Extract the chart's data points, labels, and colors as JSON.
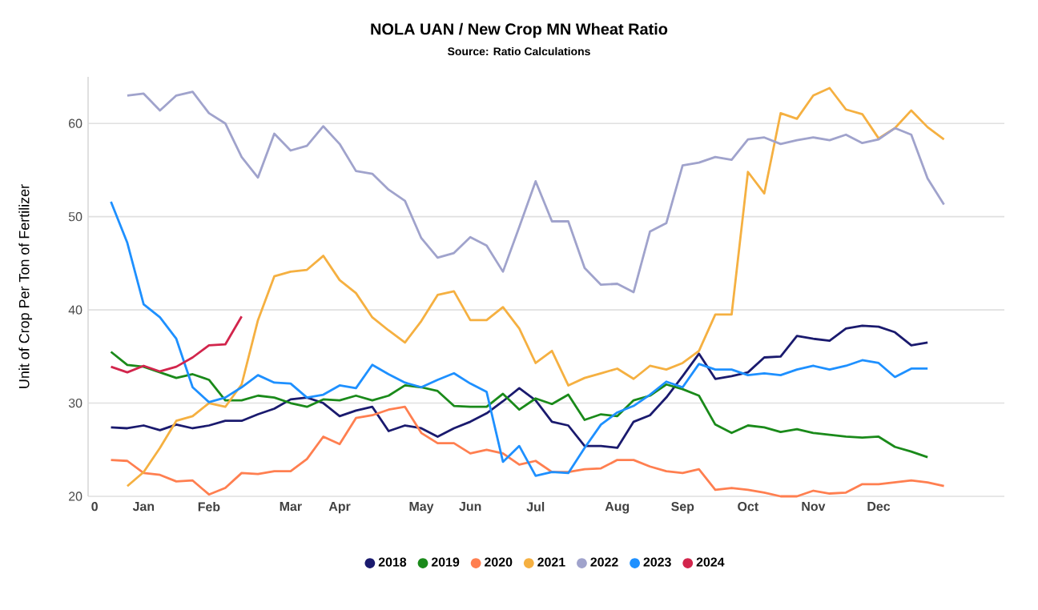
{
  "chart_data": {
    "type": "line",
    "title": "NOLA UAN / New Crop MN Wheat Ratio",
    "subtitle": "Source: Ratio Calculations",
    "ylabel": "Unit of Crop Per Ton of Fertilizer",
    "categories": [
      "0",
      null,
      null,
      "Jan",
      null,
      null,
      null,
      "Feb",
      null,
      null,
      null,
      null,
      "Mar",
      null,
      null,
      "Apr",
      null,
      null,
      null,
      null,
      "May",
      null,
      null,
      "Jun",
      null,
      null,
      null,
      "Jul",
      null,
      null,
      null,
      null,
      "Aug",
      null,
      null,
      null,
      "Sep",
      null,
      null,
      null,
      "Oct",
      null,
      null,
      null,
      "Nov",
      null,
      null,
      null,
      "Dec",
      null,
      null,
      null,
      null
    ],
    "series": [
      {
        "name": "2018",
        "color": "#1a1a6e",
        "values": [
          null,
          27.4,
          27.3,
          27.6,
          27.1,
          27.7,
          27.3,
          27.6,
          28.1,
          28.1,
          28.8,
          29.4,
          30.4,
          30.6,
          30.0,
          28.6,
          29.2,
          29.6,
          27.0,
          27.6,
          27.3,
          26.4,
          27.3,
          28.0,
          28.9,
          30.2,
          31.6,
          30.3,
          28.0,
          27.6,
          25.4,
          25.4,
          25.2,
          28.0,
          28.7,
          30.6,
          32.9,
          35.3,
          32.6,
          32.9,
          33.3,
          34.9,
          35.0,
          37.2,
          36.9,
          36.7,
          38.0,
          38.3,
          38.2,
          37.6,
          36.2,
          36.5,
          null
        ]
      },
      {
        "name": "2019",
        "color": "#1a8a1a",
        "values": [
          null,
          35.5,
          34.1,
          33.9,
          33.3,
          32.7,
          33.1,
          32.5,
          30.3,
          30.3,
          30.8,
          30.6,
          30.0,
          29.6,
          30.4,
          30.3,
          30.8,
          30.3,
          30.8,
          31.9,
          31.7,
          31.3,
          29.7,
          29.6,
          29.6,
          31.0,
          29.3,
          30.5,
          29.9,
          30.9,
          28.2,
          28.8,
          28.6,
          30.3,
          30.8,
          32.0,
          31.5,
          30.8,
          27.7,
          26.8,
          27.6,
          27.4,
          26.9,
          27.2,
          26.8,
          26.6,
          26.4,
          26.3,
          26.4,
          25.3,
          24.8,
          24.2,
          null
        ]
      },
      {
        "name": "2020",
        "color": "#ff7f50",
        "values": [
          null,
          23.9,
          23.8,
          22.5,
          22.3,
          21.6,
          21.7,
          20.2,
          20.9,
          22.5,
          22.4,
          22.7,
          22.7,
          24.0,
          26.4,
          25.6,
          28.4,
          28.7,
          29.3,
          29.6,
          26.8,
          25.7,
          25.7,
          24.6,
          25.0,
          24.6,
          23.4,
          23.8,
          22.6,
          22.6,
          22.9,
          23.0,
          23.9,
          23.9,
          23.2,
          22.7,
          22.5,
          22.9,
          20.7,
          20.9,
          20.7,
          20.4,
          20.0,
          20.0,
          20.6,
          20.3,
          20.4,
          21.3,
          21.3,
          21.5,
          21.7,
          21.5,
          21.1
        ]
      },
      {
        "name": "2021",
        "color": "#f5b041",
        "values": [
          null,
          null,
          21.1,
          22.6,
          25.2,
          28.1,
          28.6,
          30.0,
          29.6,
          32.0,
          38.9,
          43.6,
          44.1,
          44.3,
          45.8,
          43.2,
          41.8,
          39.2,
          37.8,
          36.5,
          38.8,
          41.6,
          42.0,
          38.9,
          38.9,
          40.3,
          38.0,
          34.3,
          35.6,
          31.9,
          32.7,
          33.2,
          33.7,
          32.6,
          34.0,
          33.6,
          34.3,
          35.6,
          39.5,
          39.5,
          54.8,
          52.5,
          61.1,
          60.5,
          63.0,
          63.8,
          61.5,
          61.0,
          58.4,
          59.5,
          61.4,
          59.6,
          58.3
        ]
      },
      {
        "name": "2022",
        "color": "#a0a3cc",
        "values": [
          null,
          null,
          63.0,
          63.2,
          61.4,
          63.0,
          63.4,
          61.1,
          60.0,
          56.4,
          54.2,
          58.9,
          57.1,
          57.6,
          59.7,
          57.8,
          54.9,
          54.6,
          52.9,
          51.7,
          47.7,
          45.6,
          46.1,
          47.8,
          46.9,
          44.1,
          48.9,
          53.8,
          49.5,
          49.5,
          44.5,
          42.7,
          42.8,
          41.9,
          48.4,
          49.3,
          55.5,
          55.8,
          56.4,
          56.1,
          58.3,
          58.5,
          57.8,
          58.2,
          58.5,
          58.2,
          58.8,
          57.9,
          58.3,
          59.5,
          58.8,
          54.1,
          51.3
        ]
      },
      {
        "name": "2023",
        "color": "#1e90ff",
        "values": [
          null,
          51.6,
          47.2,
          40.6,
          39.2,
          36.9,
          31.7,
          30.1,
          30.6,
          31.7,
          33.0,
          32.2,
          32.1,
          30.6,
          30.9,
          31.9,
          31.6,
          34.1,
          33.1,
          32.2,
          31.7,
          32.5,
          33.2,
          32.1,
          31.2,
          23.7,
          25.4,
          22.2,
          22.6,
          22.5,
          25.2,
          27.7,
          29.0,
          29.7,
          30.9,
          32.3,
          31.7,
          34.2,
          33.6,
          33.6,
          33.0,
          33.2,
          33.0,
          33.6,
          34.0,
          33.6,
          34.0,
          34.6,
          34.3,
          32.8,
          33.7,
          33.7,
          null
        ]
      },
      {
        "name": "2024",
        "color": "#d2254c",
        "values": [
          null,
          33.9,
          33.3,
          34.0,
          33.4,
          33.9,
          34.9,
          36.2,
          36.3,
          39.3,
          null,
          null,
          null,
          null,
          null,
          null,
          null,
          null,
          null,
          null,
          null,
          null,
          null,
          null,
          null,
          null,
          null,
          null,
          null,
          null,
          null,
          null,
          null,
          null,
          null,
          null,
          null,
          null,
          null,
          null,
          null,
          null,
          null,
          null,
          null,
          null,
          null,
          null,
          null,
          null,
          null,
          null,
          null
        ]
      }
    ],
    "ylim": [
      20,
      65
    ],
    "yticks": [
      20,
      30,
      40,
      50,
      60
    ],
    "grid": "y",
    "legend": "bottom",
    "marker": "none",
    "line_style": "solid"
  }
}
